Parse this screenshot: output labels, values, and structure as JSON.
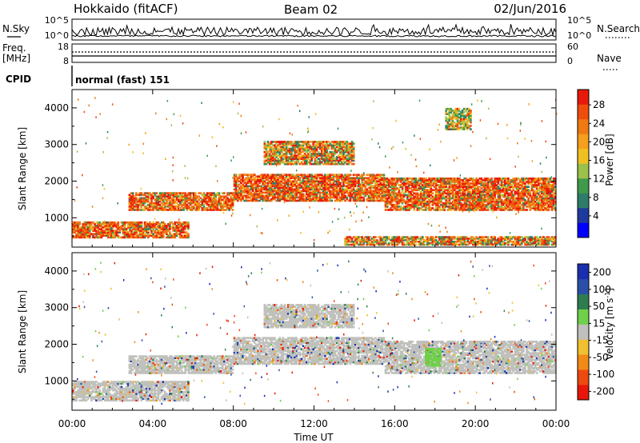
{
  "header": {
    "radar": "Hokkaido (fitACF)",
    "beam": "Beam 02",
    "date": "02/Jun/2016"
  },
  "strip": {
    "nsky_label": "N.Sky",
    "nsky_tick_top": "10^5",
    "nsky_tick_bottom": "10^0",
    "nsearch_tick_top": "10^5",
    "nsearch_tick_bottom": "10^0",
    "nsearch_label": "N.Search",
    "freq_label_1": "Freq.",
    "freq_label_2": "[MHz]",
    "freq_tick_top": "18",
    "freq_tick_bottom": "8",
    "nave_tick_top": "60",
    "nave_tick_bottom": "0",
    "nave_label": "Nave",
    "cpid_label": "CPID",
    "cpid_value": "normal (fast) 151"
  },
  "chart_data": [
    {
      "type": "heatmap",
      "panel": "power",
      "ylabel": "Slant Range [km]",
      "xlabel": "",
      "ylim": [
        200,
        4500
      ],
      "yticks": [
        "1000",
        "2000",
        "3000",
        "4000"
      ],
      "colorbar_label": "Power [dB]",
      "colorbar_ticks": [
        "4",
        "8",
        "12",
        "16",
        "20",
        "24",
        "28"
      ],
      "colorbar_colors": [
        "#0000ff",
        "#1f3a9e",
        "#2e7d68",
        "#3f9a4c",
        "#9cc14a",
        "#f0c022",
        "#f59f1c",
        "#f07a12",
        "#ef4d0c",
        "#e8190a"
      ],
      "echo_regions": [
        {
          "t_start": 0.0,
          "t_end": 5.8,
          "r_start": 450,
          "r_end": 900,
          "level": "high"
        },
        {
          "t_start": 2.8,
          "t_end": 8.0,
          "r_start": 1200,
          "r_end": 1700,
          "level": "high"
        },
        {
          "t_start": 8.0,
          "t_end": 15.5,
          "r_start": 1450,
          "r_end": 2200,
          "level": "high"
        },
        {
          "t_start": 15.5,
          "t_end": 24.0,
          "r_start": 1200,
          "r_end": 2100,
          "level": "high"
        },
        {
          "t_start": 9.5,
          "t_end": 14.0,
          "r_start": 2450,
          "r_end": 3100,
          "level": "medium"
        },
        {
          "t_start": 18.5,
          "t_end": 19.8,
          "r_start": 3400,
          "r_end": 4000,
          "level": "low"
        },
        {
          "t_start": 13.5,
          "t_end": 24.0,
          "r_start": 250,
          "r_end": 500,
          "level": "medium"
        }
      ]
    },
    {
      "type": "heatmap",
      "panel": "velocity",
      "ylabel": "Slant Range [km]",
      "xlabel": "Time UT",
      "ylim": [
        200,
        4500
      ],
      "yticks": [
        "1000",
        "2000",
        "3000",
        "4000"
      ],
      "xticks": [
        "00:00",
        "04:00",
        "08:00",
        "12:00",
        "16:00",
        "20:00",
        "00:00"
      ],
      "xlim": [
        0,
        24
      ],
      "colorbar_label": "Velocity [m s^-1]",
      "colorbar_ticks": [
        "200",
        "100",
        "50",
        "15",
        "-15",
        "-50",
        "-100",
        "-200"
      ],
      "colorbar_colors": [
        "#1a2fb0",
        "#2a4fa8",
        "#2e7d50",
        "#6fd04a",
        "#c0c0bc",
        "#f0c030",
        "#f28a18",
        "#ee4a10",
        "#e8150a"
      ],
      "echo_regions": [
        {
          "t_start": 0.0,
          "t_end": 5.8,
          "r_start": 450,
          "r_end": 1000,
          "level": "ground"
        },
        {
          "t_start": 2.8,
          "t_end": 8.0,
          "r_start": 1200,
          "r_end": 1700,
          "level": "ground"
        },
        {
          "t_start": 8.0,
          "t_end": 15.5,
          "r_start": 1450,
          "r_end": 2200,
          "level": "ground"
        },
        {
          "t_start": 15.5,
          "t_end": 24.0,
          "r_start": 1200,
          "r_end": 2100,
          "level": "ground"
        },
        {
          "t_start": 9.5,
          "t_end": 14.0,
          "r_start": 2450,
          "r_end": 3100,
          "level": "ground"
        },
        {
          "t_start": 17.5,
          "t_end": 18.3,
          "r_start": 1400,
          "r_end": 1900,
          "level": "positive"
        }
      ]
    }
  ]
}
